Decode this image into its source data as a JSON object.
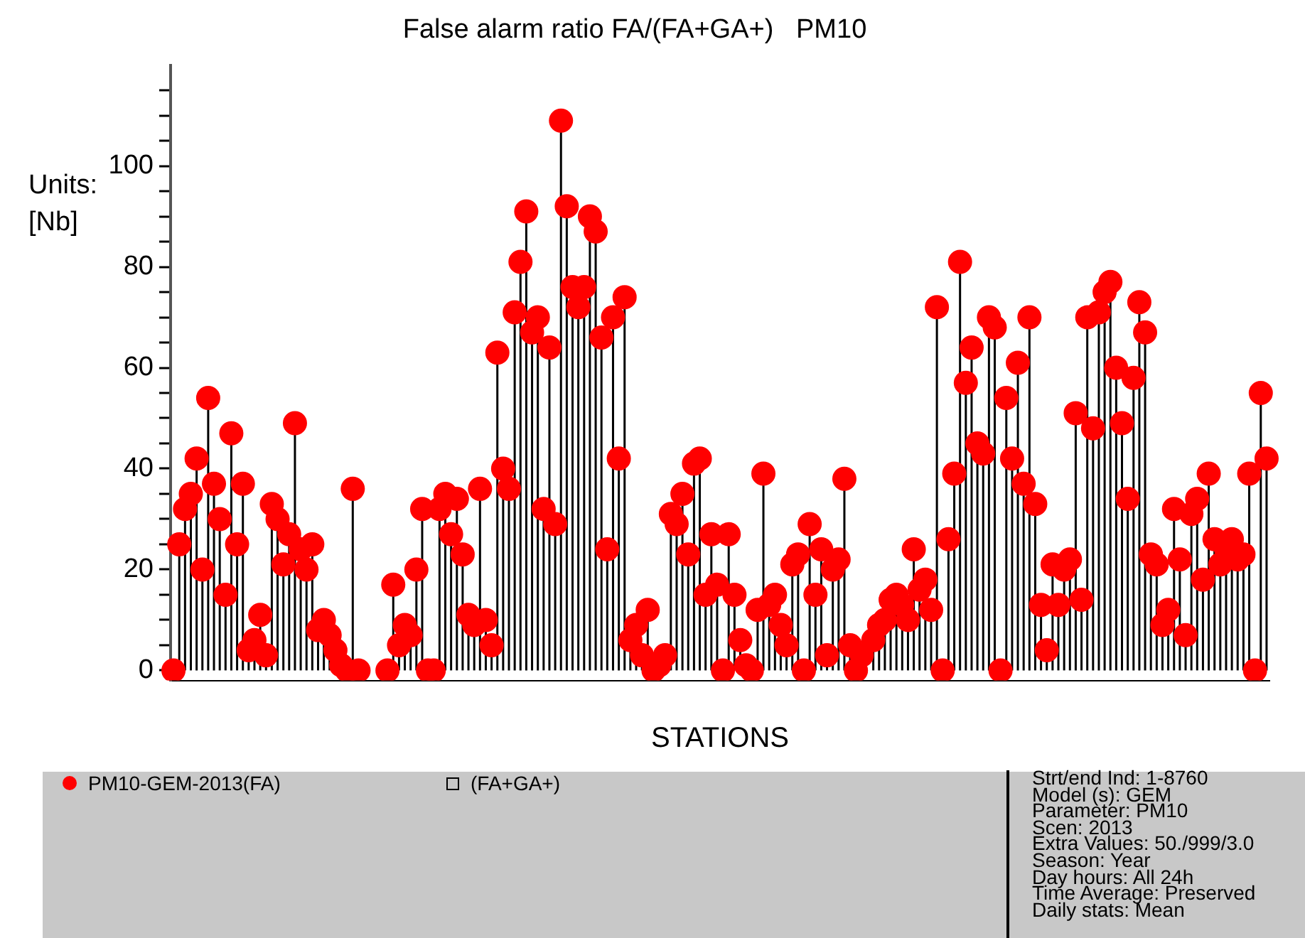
{
  "chart_data": {
    "type": "lollipop",
    "title": "False alarm ratio FA/(FA+GA+)   PM10",
    "xlabel": "STATIONS",
    "ylabel": "Units:\n[Nb]",
    "categories": [
      null,
      null,
      null,
      null,
      null,
      null,
      null,
      null,
      null,
      null,
      null,
      null,
      null,
      null,
      null,
      null,
      null,
      null,
      null,
      null,
      null,
      null,
      null,
      null,
      null,
      null,
      null,
      null,
      null,
      null,
      null,
      null,
      null,
      null,
      null,
      null,
      null,
      null,
      null,
      null,
      null,
      null,
      null,
      null,
      null,
      null,
      null,
      null,
      null,
      null,
      null,
      null,
      null,
      null,
      null,
      null,
      null,
      null,
      null,
      null,
      null,
      null,
      null,
      null,
      null,
      null,
      null,
      null,
      null,
      null,
      null,
      null,
      null,
      null,
      null,
      null,
      null,
      null,
      null,
      null,
      null,
      null,
      null,
      null,
      null,
      null,
      null,
      null,
      null,
      null,
      null,
      null,
      null,
      null,
      null,
      null,
      null,
      null,
      null,
      null,
      null,
      null,
      null,
      null,
      null,
      null,
      null,
      null,
      null,
      null,
      null,
      null,
      null,
      null,
      null,
      null,
      null,
      null,
      null,
      null,
      null,
      null,
      null,
      null,
      null,
      null,
      null,
      null,
      null,
      null,
      null,
      null,
      null,
      null,
      null,
      null,
      null,
      null,
      null,
      null,
      null,
      null,
      null,
      null,
      null,
      null,
      null,
      null,
      null,
      null,
      null,
      null,
      null,
      null,
      null,
      null,
      null,
      null,
      null,
      null,
      null,
      null,
      null,
      null,
      null,
      null,
      null,
      null,
      null,
      null,
      null,
      null,
      null,
      null,
      null,
      null,
      null,
      null,
      null,
      null,
      null,
      null,
      null,
      null,
      null,
      null,
      null,
      null,
      null,
      null
    ],
    "series": [
      {
        "name": "PM10-GEM-2013(FA)",
        "color": "#ff0000",
        "marker": "circle",
        "values": [
          0,
          25,
          32,
          35,
          42,
          20,
          54,
          37,
          30,
          15,
          47,
          25,
          37,
          4,
          6,
          11,
          3,
          33,
          30,
          21,
          27,
          49,
          24,
          20,
          25,
          8,
          10,
          7,
          4,
          1,
          0,
          36,
          0,
          null,
          null,
          null,
          null,
          0,
          17,
          5,
          9,
          7,
          20,
          32,
          0,
          0,
          32,
          35,
          27,
          34,
          23,
          11,
          9,
          36,
          10,
          5,
          63,
          40,
          36,
          71,
          81,
          91,
          67,
          70,
          32,
          64,
          29,
          109,
          92,
          76,
          72,
          76,
          90,
          87,
          66,
          24,
          70,
          42,
          74,
          6,
          9,
          3,
          12,
          0,
          1,
          3,
          31,
          29,
          35,
          23,
          41,
          42,
          15,
          27,
          17,
          0,
          27,
          15,
          6,
          1,
          0,
          12,
          39,
          13,
          15,
          9,
          5,
          21,
          23,
          0,
          29,
          15,
          24,
          3,
          20,
          22,
          38,
          5,
          0,
          3,
          null,
          6,
          9,
          10,
          14,
          15,
          13,
          10,
          24,
          16,
          18,
          12,
          72,
          0,
          26,
          39,
          81,
          57,
          64,
          45,
          43,
          70,
          68,
          0,
          54,
          42,
          61,
          37,
          70,
          33,
          13,
          4,
          21,
          13,
          20,
          22,
          51,
          14,
          70,
          48,
          71,
          75,
          77,
          60,
          49,
          34,
          58,
          73,
          67,
          23,
          21,
          9,
          12,
          32,
          22,
          7,
          31,
          34,
          18,
          39,
          26,
          21,
          24,
          26,
          22,
          23,
          39,
          0,
          55,
          42
        ]
      },
      {
        "name": "(FA+GA+)",
        "color": "#000000",
        "marker": "square",
        "type": "scatter",
        "values": [
          null,
          null,
          null,
          null,
          null,
          null,
          null,
          null,
          null,
          null,
          null,
          null,
          null,
          null,
          null,
          null,
          null,
          null,
          null,
          null,
          null,
          null,
          null,
          null,
          null,
          null,
          null,
          null,
          null,
          null,
          null,
          null,
          null,
          null,
          null,
          null,
          null,
          null,
          null,
          null,
          null,
          null,
          null,
          null,
          null,
          null,
          null,
          null,
          null,
          null,
          null,
          null,
          null,
          null,
          null,
          null,
          null,
          null,
          null,
          null,
          null,
          null,
          null,
          null,
          null,
          null,
          null,
          null,
          null,
          null,
          null,
          null,
          null,
          null,
          null,
          null,
          null,
          null,
          null,
          null,
          null,
          null,
          null,
          null,
          null,
          null,
          null,
          null,
          null,
          null,
          null,
          null,
          null,
          null,
          null,
          null,
          null,
          null,
          null,
          null,
          null,
          null,
          null,
          null,
          null,
          null,
          null,
          null,
          null,
          null,
          null,
          null,
          null,
          null,
          null,
          null,
          null,
          null,
          null,
          null,
          null,
          null,
          null,
          null,
          null,
          null,
          null,
          null,
          null,
          null,
          null,
          null,
          null,
          null,
          null,
          null,
          null,
          null,
          null,
          null,
          null,
          null,
          null,
          null,
          null,
          null,
          null,
          null,
          null,
          null,
          null,
          null,
          null,
          null,
          null,
          null,
          null,
          null,
          null,
          null,
          null,
          null,
          null,
          null,
          null,
          null,
          null,
          null,
          null,
          null,
          null,
          null,
          null,
          null,
          null,
          null,
          null,
          null,
          null,
          null,
          null,
          null,
          null,
          null,
          null,
          null,
          null,
          null,
          null,
          null
        ]
      }
    ],
    "ylim": [
      -2,
      120
    ],
    "yticks": [
      0,
      {
        "value": 5,
        "label": null
      },
      {
        "value": 10,
        "label": null
      },
      {
        "value": 15,
        "label": null
      },
      20,
      {
        "value": 25,
        "label": null
      },
      {
        "value": 30,
        "label": null
      },
      {
        "value": 35,
        "label": null
      },
      40,
      {
        "value": 45,
        "label": null
      },
      {
        "value": 50,
        "label": null
      },
      {
        "value": 55,
        "label": null
      },
      60,
      {
        "value": 65,
        "label": null
      },
      {
        "value": 70,
        "label": null
      },
      {
        "value": 75,
        "label": null
      },
      80,
      {
        "value": 85,
        "label": null
      },
      {
        "value": 90,
        "label": null
      },
      {
        "value": 95,
        "label": null
      },
      100,
      {
        "value": 105,
        "label": null
      },
      {
        "value": 110,
        "label": null
      },
      {
        "value": 115,
        "label": null
      }
    ],
    "legend": "bottom",
    "grid": false,
    "annotations": [
      "Strt/end Ind: 1-8760",
      "Model (s): GEM",
      "Parameter: PM10",
      "Scen: 2013",
      "Extra Values: 50./999/3.0",
      "Season: Year",
      "Day hours: All 24h",
      "Time Average: Preserved",
      "Daily stats: Mean"
    ]
  }
}
